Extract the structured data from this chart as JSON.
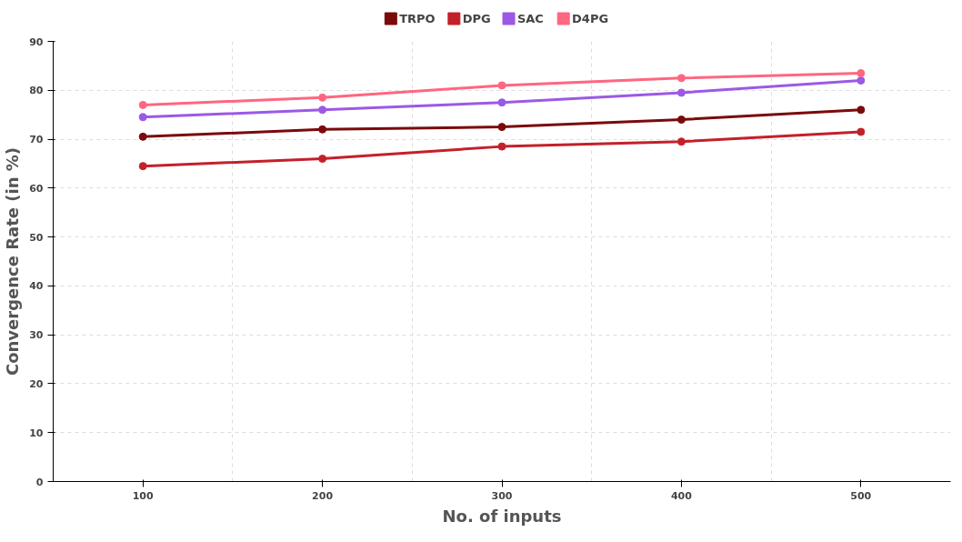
{
  "chart_data": {
    "type": "line",
    "xlabel": "No. of inputs",
    "ylabel": "Convergence Rate (in %)",
    "categories": [
      "100",
      "200",
      "300",
      "400",
      "500"
    ],
    "series": [
      {
        "name": "TRPO",
        "color": "#7b0a0a",
        "values": [
          70.5,
          72,
          72.5,
          74,
          76
        ]
      },
      {
        "name": "DPG",
        "color": "#c4202a",
        "values": [
          64.5,
          66,
          68.5,
          69.5,
          71.5
        ]
      },
      {
        "name": "SAC",
        "color": "#9b59e6",
        "values": [
          74.5,
          76,
          77.5,
          79.5,
          82
        ]
      },
      {
        "name": "D4PG",
        "color": "#ff6680",
        "values": [
          77,
          78.5,
          81,
          82.5,
          83.5
        ]
      }
    ],
    "ylim": [
      0,
      90
    ],
    "yticks": [
      0,
      10,
      20,
      30,
      40,
      50,
      60,
      70,
      80,
      90
    ],
    "grid": true,
    "legend": "top",
    "marker": "circle",
    "line_style": "solid"
  }
}
